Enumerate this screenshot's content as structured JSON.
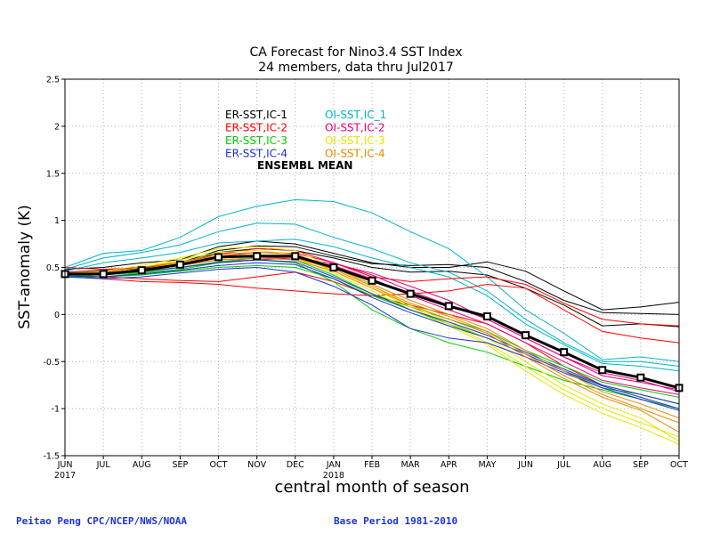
{
  "chart_data": {
    "type": "line",
    "title": "CA Forecast for Nino3.4 SST Index",
    "subtitle": "24 members, data thru Jul2017",
    "xlabel": "central month of season",
    "ylabel": "SST-anomaly (K)",
    "ylim": [
      -1.5,
      2.5
    ],
    "yticks": [
      "2.5",
      "2",
      "1.5",
      "1",
      "0.5",
      "0",
      "-0.5",
      "-1",
      "-1.5"
    ],
    "categories": [
      "JUN",
      "JUL",
      "AUG",
      "SEP",
      "OCT",
      "NOV",
      "DEC",
      "JAN",
      "FEB",
      "MAR",
      "APR",
      "MAY",
      "JUN",
      "JUL",
      "AUG",
      "SEP",
      "OCT"
    ],
    "year_labels": [
      {
        "index": 0,
        "text": "2017"
      },
      {
        "index": 7,
        "text": "2018"
      }
    ],
    "grid": "dotted",
    "legend": {
      "placement": "top-left",
      "entries": [
        {
          "text": "ER-SST,IC-1",
          "color": "#000000"
        },
        {
          "text": "OI-SST,IC_1",
          "color": "#00b4cc"
        },
        {
          "text": "ER-SST,IC-2",
          "color": "#ff0000"
        },
        {
          "text": "OI-SST,IC-2",
          "color": "#e6007a"
        },
        {
          "text": "ER-SST,IC-3",
          "color": "#00cc00"
        },
        {
          "text": "OI-SST,IC-3",
          "color": "#e6e600"
        },
        {
          "text": "ER-SST,IC-4",
          "color": "#1a33cc"
        },
        {
          "text": "OI-SST,IC-4",
          "color": "#e68a00"
        }
      ],
      "mean_label": "ENSEMBL MEAN"
    },
    "mean_series": {
      "name": "ENSEMBL MEAN",
      "color": "#000000",
      "values": [
        0.43,
        0.43,
        0.47,
        0.53,
        0.61,
        0.62,
        0.62,
        0.5,
        0.36,
        0.22,
        0.09,
        -0.02,
        -0.22,
        -0.4,
        -0.59,
        -0.67,
        -0.78
      ]
    },
    "series": [
      {
        "group": "ER-SST,IC-1",
        "color": "#000000",
        "values": [
          0.48,
          0.5,
          0.55,
          0.58,
          0.72,
          0.78,
          0.75,
          0.65,
          0.55,
          0.5,
          0.5,
          0.56,
          0.46,
          0.25,
          0.05,
          0.08,
          0.13
        ]
      },
      {
        "group": "ER-SST,IC-1",
        "color": "#000000",
        "values": [
          0.45,
          0.47,
          0.5,
          0.55,
          0.68,
          0.73,
          0.72,
          0.62,
          0.54,
          0.52,
          0.53,
          0.5,
          0.35,
          0.15,
          0.02,
          0.01,
          0.0
        ]
      },
      {
        "group": "ER-SST,IC-1",
        "color": "#000000",
        "values": [
          0.44,
          0.46,
          0.49,
          0.54,
          0.66,
          0.7,
          0.68,
          0.6,
          0.5,
          0.45,
          0.46,
          0.42,
          0.28,
          0.1,
          -0.12,
          -0.1,
          -0.13
        ]
      },
      {
        "group": "OI-SST,IC_1",
        "color": "#00b4cc",
        "values": [
          0.5,
          0.65,
          0.68,
          0.82,
          1.04,
          1.15,
          1.22,
          1.2,
          1.08,
          0.88,
          0.7,
          0.4,
          0.05,
          -0.2,
          -0.48,
          -0.45,
          -0.5
        ]
      },
      {
        "group": "OI-SST,IC_1",
        "color": "#00b4cc",
        "values": [
          0.48,
          0.6,
          0.66,
          0.74,
          0.88,
          0.97,
          0.96,
          0.82,
          0.7,
          0.55,
          0.45,
          0.25,
          -0.05,
          -0.3,
          -0.5,
          -0.5,
          -0.55
        ]
      },
      {
        "group": "OI-SST,IC_1",
        "color": "#00b4cc",
        "values": [
          0.46,
          0.55,
          0.6,
          0.66,
          0.76,
          0.78,
          0.8,
          0.72,
          0.6,
          0.5,
          0.4,
          0.2,
          -0.1,
          -0.32,
          -0.52,
          -0.55,
          -0.6
        ]
      },
      {
        "group": "ER-SST,IC-2",
        "color": "#ff0000",
        "values": [
          0.5,
          0.48,
          0.5,
          0.55,
          0.64,
          0.7,
          0.68,
          0.55,
          0.4,
          0.35,
          0.38,
          0.4,
          0.32,
          0.12,
          -0.05,
          -0.1,
          -0.12
        ]
      },
      {
        "group": "ER-SST,IC-2",
        "color": "#ff0000",
        "values": [
          0.42,
          0.38,
          0.35,
          0.34,
          0.32,
          0.28,
          0.25,
          0.22,
          0.2,
          0.22,
          0.25,
          0.32,
          0.28,
          0.05,
          -0.18,
          -0.25,
          -0.3
        ]
      },
      {
        "group": "ER-SST,IC-2",
        "color": "#ff0000",
        "values": [
          0.42,
          0.4,
          0.38,
          0.36,
          0.35,
          0.4,
          0.45,
          0.35,
          0.2,
          0.1,
          0.0,
          -0.1,
          -0.3,
          -0.55,
          -0.75,
          -0.85,
          -0.95
        ]
      },
      {
        "group": "OI-SST,IC-2",
        "color": "#e6007a",
        "values": [
          0.45,
          0.46,
          0.5,
          0.56,
          0.62,
          0.66,
          0.65,
          0.55,
          0.42,
          0.25,
          0.1,
          -0.05,
          -0.25,
          -0.45,
          -0.65,
          -0.72,
          -0.8
        ]
      },
      {
        "group": "OI-SST,IC-2",
        "color": "#e6007a",
        "values": [
          0.44,
          0.44,
          0.47,
          0.52,
          0.58,
          0.6,
          0.6,
          0.52,
          0.38,
          0.2,
          0.05,
          -0.1,
          -0.3,
          -0.5,
          -0.7,
          -0.78,
          -0.85
        ]
      },
      {
        "group": "OI-SST,IC-2",
        "color": "#e6007a",
        "values": [
          0.43,
          0.42,
          0.45,
          0.5,
          0.56,
          0.58,
          0.6,
          0.54,
          0.44,
          0.3,
          0.15,
          -0.05,
          -0.25,
          -0.45,
          -0.62,
          -0.7,
          -0.82
        ]
      },
      {
        "group": "ER-SST,IC-3",
        "color": "#00cc00",
        "values": [
          0.42,
          0.4,
          0.44,
          0.48,
          0.55,
          0.58,
          0.55,
          0.35,
          0.05,
          -0.15,
          -0.3,
          -0.4,
          -0.55,
          -0.7,
          -0.8,
          -0.9,
          -1.0
        ]
      },
      {
        "group": "ER-SST,IC-3",
        "color": "#00cc00",
        "values": [
          0.4,
          0.4,
          0.42,
          0.46,
          0.5,
          0.52,
          0.5,
          0.38,
          0.2,
          0.05,
          -0.1,
          -0.25,
          -0.42,
          -0.6,
          -0.78,
          -0.85,
          -0.95
        ]
      },
      {
        "group": "ER-SST,IC-3",
        "color": "#00cc00",
        "values": [
          0.41,
          0.42,
          0.45,
          0.5,
          0.56,
          0.6,
          0.58,
          0.42,
          0.22,
          0.08,
          -0.05,
          -0.18,
          -0.38,
          -0.55,
          -0.72,
          -0.8,
          -0.88
        ]
      },
      {
        "group": "OI-SST,IC-3",
        "color": "#e6e600",
        "values": [
          0.44,
          0.46,
          0.52,
          0.6,
          0.7,
          0.72,
          0.68,
          0.5,
          0.3,
          0.1,
          -0.08,
          -0.25,
          -0.5,
          -0.75,
          -0.95,
          -1.1,
          -1.35
        ]
      },
      {
        "group": "OI-SST,IC-3",
        "color": "#e6e600",
        "values": [
          0.43,
          0.45,
          0.5,
          0.58,
          0.66,
          0.68,
          0.64,
          0.46,
          0.28,
          0.08,
          -0.1,
          -0.3,
          -0.55,
          -0.8,
          -1.0,
          -1.15,
          -1.3
        ]
      },
      {
        "group": "OI-SST,IC-3",
        "color": "#e6e600",
        "values": [
          0.42,
          0.44,
          0.48,
          0.55,
          0.62,
          0.64,
          0.6,
          0.44,
          0.25,
          0.05,
          -0.12,
          -0.32,
          -0.6,
          -0.85,
          -1.05,
          -1.2,
          -1.38
        ]
      },
      {
        "group": "ER-SST,IC-4",
        "color": "#1a33cc",
        "values": [
          0.4,
          0.38,
          0.4,
          0.44,
          0.48,
          0.5,
          0.45,
          0.3,
          0.1,
          -0.15,
          -0.25,
          -0.3,
          -0.45,
          -0.62,
          -0.78,
          -0.9,
          -1.02
        ]
      },
      {
        "group": "ER-SST,IC-4",
        "color": "#1a33cc",
        "values": [
          0.42,
          0.42,
          0.46,
          0.5,
          0.55,
          0.58,
          0.56,
          0.4,
          0.22,
          0.05,
          -0.08,
          -0.22,
          -0.4,
          -0.58,
          -0.75,
          -0.85,
          -0.95
        ]
      },
      {
        "group": "ER-SST,IC-4",
        "color": "#1a33cc",
        "values": [
          0.41,
          0.4,
          0.43,
          0.47,
          0.52,
          0.55,
          0.53,
          0.38,
          0.18,
          0.02,
          -0.12,
          -0.25,
          -0.42,
          -0.6,
          -0.76,
          -0.88,
          -1.0
        ]
      },
      {
        "group": "OI-SST,IC-4",
        "color": "#e68a00",
        "values": [
          0.44,
          0.45,
          0.5,
          0.56,
          0.64,
          0.66,
          0.64,
          0.5,
          0.32,
          0.15,
          0.0,
          -0.15,
          -0.38,
          -0.6,
          -0.82,
          -0.95,
          -1.1
        ]
      },
      {
        "group": "OI-SST,IC-4",
        "color": "#e68a00",
        "values": [
          0.43,
          0.44,
          0.48,
          0.54,
          0.6,
          0.62,
          0.6,
          0.48,
          0.3,
          0.12,
          -0.02,
          -0.18,
          -0.42,
          -0.65,
          -0.85,
          -1.0,
          -1.15
        ]
      },
      {
        "group": "OI-SST,IC-4",
        "color": "#e68a00",
        "values": [
          0.42,
          0.43,
          0.47,
          0.52,
          0.58,
          0.6,
          0.58,
          0.46,
          0.28,
          0.1,
          -0.05,
          -0.2,
          -0.45,
          -0.68,
          -0.88,
          -1.02,
          -1.25
        ]
      }
    ]
  },
  "footer": {
    "credit": "Peitao Peng CPC/NCEP/NWS/NOAA",
    "base_period": "Base Period 1981-2010"
  }
}
